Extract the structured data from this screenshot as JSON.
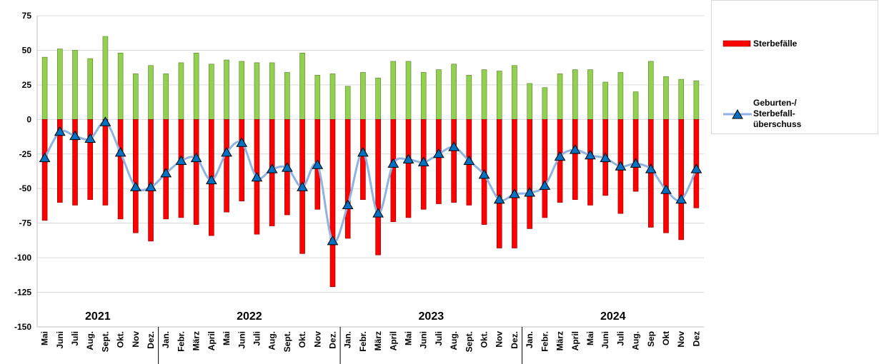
{
  "chart_data": {
    "type": "bar",
    "categories": [
      "Mai",
      "Juni",
      "Juli",
      "Aug.",
      "Sept.",
      "Okt.",
      "Nov",
      "Dez.",
      "Jan.",
      "Febr.",
      "März",
      "April",
      "Mai",
      "Juni",
      "Juli",
      "Aug.",
      "Sept.",
      "Okt.",
      "Nov",
      "Dez.",
      "Jan.",
      "Febr.",
      "März",
      "April",
      "Mai",
      "Juni",
      "Juli",
      "Aug.",
      "Sept.",
      "Okt.",
      "Nov",
      "Dez.",
      "Jan.",
      "Febr.",
      "März",
      "April",
      "Mai",
      "Juni",
      "Juli",
      "Aug.",
      "Sep",
      "Okt",
      "Nov",
      "Dez"
    ],
    "year_labels": [
      "2021",
      "2022",
      "2023",
      "2024"
    ],
    "series": [
      {
        "type": "bar",
        "color": "#92d050",
        "values": [
          45,
          51,
          50,
          44,
          60,
          48,
          33,
          39,
          33,
          41,
          48,
          40,
          43,
          42,
          41,
          41,
          34,
          48,
          32,
          33,
          24,
          34,
          30,
          42,
          42,
          34,
          36,
          40,
          32,
          36,
          35,
          39,
          26,
          23,
          33,
          36,
          36,
          27,
          34,
          20,
          42,
          31,
          29,
          28
        ]
      },
      {
        "name": "Sterbefälle",
        "type": "bar",
        "color": "#ff0000",
        "values": [
          -73,
          -60,
          -62,
          -58,
          -62,
          -72,
          -82,
          -88,
          -72,
          -71,
          -76,
          -84,
          -67,
          -59,
          -83,
          -77,
          -69,
          -97,
          -65,
          -121,
          -86,
          -58,
          -98,
          -74,
          -71,
          -65,
          -61,
          -60,
          -62,
          -76,
          -93,
          -93,
          -79,
          -71,
          -60,
          -58,
          -62,
          -55,
          -68,
          -52,
          -78,
          -82,
          -87,
          -64
        ]
      },
      {
        "name": "Geburten-/ Sterbefall­überschuss",
        "type": "line",
        "color": "#8eb4e3",
        "values": [
          -28,
          -9,
          -12,
          -14,
          -2,
          -24,
          -49,
          -49,
          -39,
          -30,
          -28,
          -44,
          -24,
          -17,
          -42,
          -36,
          -35,
          -49,
          -33,
          -88,
          -62,
          -24,
          -68,
          -32,
          -29,
          -31,
          -25,
          -20,
          -30,
          -40,
          -58,
          -54,
          -53,
          -48,
          -27,
          -22,
          -26,
          -28,
          -34,
          -32,
          -36,
          -51,
          -58,
          -36
        ]
      }
    ],
    "ylim": [
      -150,
      75
    ],
    "yticks": [
      -150,
      -125,
      -100,
      -75,
      -50,
      -25,
      0,
      25,
      50,
      75
    ],
    "grid": true,
    "legend": "right"
  }
}
